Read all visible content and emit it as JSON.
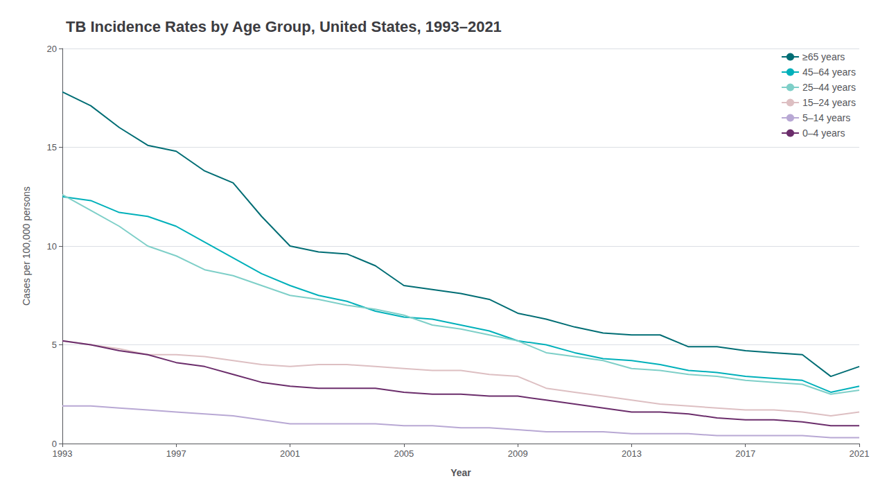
{
  "chart_data": {
    "type": "line",
    "title": "TB Incidence Rates by Age Group, United States, 1993–2021",
    "xlabel": "Year",
    "ylabel": "Cases per 100,000 persons",
    "x": [
      1993,
      1994,
      1995,
      1996,
      1997,
      1998,
      1999,
      2000,
      2001,
      2002,
      2003,
      2004,
      2005,
      2006,
      2007,
      2008,
      2009,
      2010,
      2011,
      2012,
      2013,
      2014,
      2015,
      2016,
      2017,
      2018,
      2019,
      2020,
      2021
    ],
    "xlim": [
      1993,
      2021
    ],
    "xticks": [
      1993,
      1997,
      2001,
      2005,
      2009,
      2013,
      2017,
      2021
    ],
    "ylim": [
      0,
      20
    ],
    "yticks": [
      0,
      5,
      10,
      15,
      20
    ],
    "grid": true,
    "legend": "upper right",
    "series": [
      {
        "name": "≥65 years",
        "color": "#006d74",
        "values": [
          17.8,
          17.1,
          16.0,
          15.1,
          14.8,
          13.8,
          13.2,
          11.5,
          10.0,
          9.7,
          9.6,
          9.0,
          8.0,
          7.8,
          7.6,
          7.3,
          6.6,
          6.3,
          5.9,
          5.6,
          5.5,
          5.5,
          4.9,
          4.9,
          4.7,
          4.6,
          4.5,
          3.4,
          3.9
        ]
      },
      {
        "name": "45–64 years",
        "color": "#00b0ba",
        "values": [
          12.5,
          12.3,
          11.7,
          11.5,
          11.0,
          10.2,
          9.4,
          8.6,
          8.0,
          7.5,
          7.2,
          6.7,
          6.4,
          6.3,
          6.0,
          5.7,
          5.2,
          5.0,
          4.6,
          4.3,
          4.2,
          4.0,
          3.7,
          3.6,
          3.4,
          3.3,
          3.2,
          2.6,
          2.9
        ]
      },
      {
        "name": "25–44 years",
        "color": "#7ecfc8",
        "values": [
          12.6,
          11.8,
          11.0,
          10.0,
          9.5,
          8.8,
          8.5,
          8.0,
          7.5,
          7.3,
          7.0,
          6.8,
          6.5,
          6.0,
          5.8,
          5.5,
          5.2,
          4.6,
          4.4,
          4.2,
          3.8,
          3.7,
          3.5,
          3.4,
          3.2,
          3.1,
          3.0,
          2.5,
          2.7
        ]
      },
      {
        "name": "15–24 years",
        "color": "#ddbfc2",
        "values": [
          5.2,
          5.0,
          4.8,
          4.5,
          4.5,
          4.4,
          4.2,
          4.0,
          3.9,
          4.0,
          4.0,
          3.9,
          3.8,
          3.7,
          3.7,
          3.5,
          3.4,
          2.8,
          2.6,
          2.4,
          2.2,
          2.0,
          1.9,
          1.8,
          1.7,
          1.7,
          1.6,
          1.4,
          1.6
        ]
      },
      {
        "name": "5–14 years",
        "color": "#b8a8d4",
        "values": [
          1.9,
          1.9,
          1.8,
          1.7,
          1.6,
          1.5,
          1.4,
          1.2,
          1.0,
          1.0,
          1.0,
          1.0,
          0.9,
          0.9,
          0.8,
          0.8,
          0.7,
          0.6,
          0.6,
          0.6,
          0.5,
          0.5,
          0.5,
          0.4,
          0.4,
          0.4,
          0.4,
          0.3,
          0.3
        ]
      },
      {
        "name": "0–4 years",
        "color": "#6b2d6b",
        "values": [
          5.2,
          5.0,
          4.7,
          4.5,
          4.1,
          3.9,
          3.5,
          3.1,
          2.9,
          2.8,
          2.8,
          2.8,
          2.6,
          2.5,
          2.5,
          2.4,
          2.4,
          2.2,
          2.0,
          1.8,
          1.6,
          1.6,
          1.5,
          1.3,
          1.2,
          1.2,
          1.1,
          0.9,
          0.9
        ]
      }
    ]
  }
}
